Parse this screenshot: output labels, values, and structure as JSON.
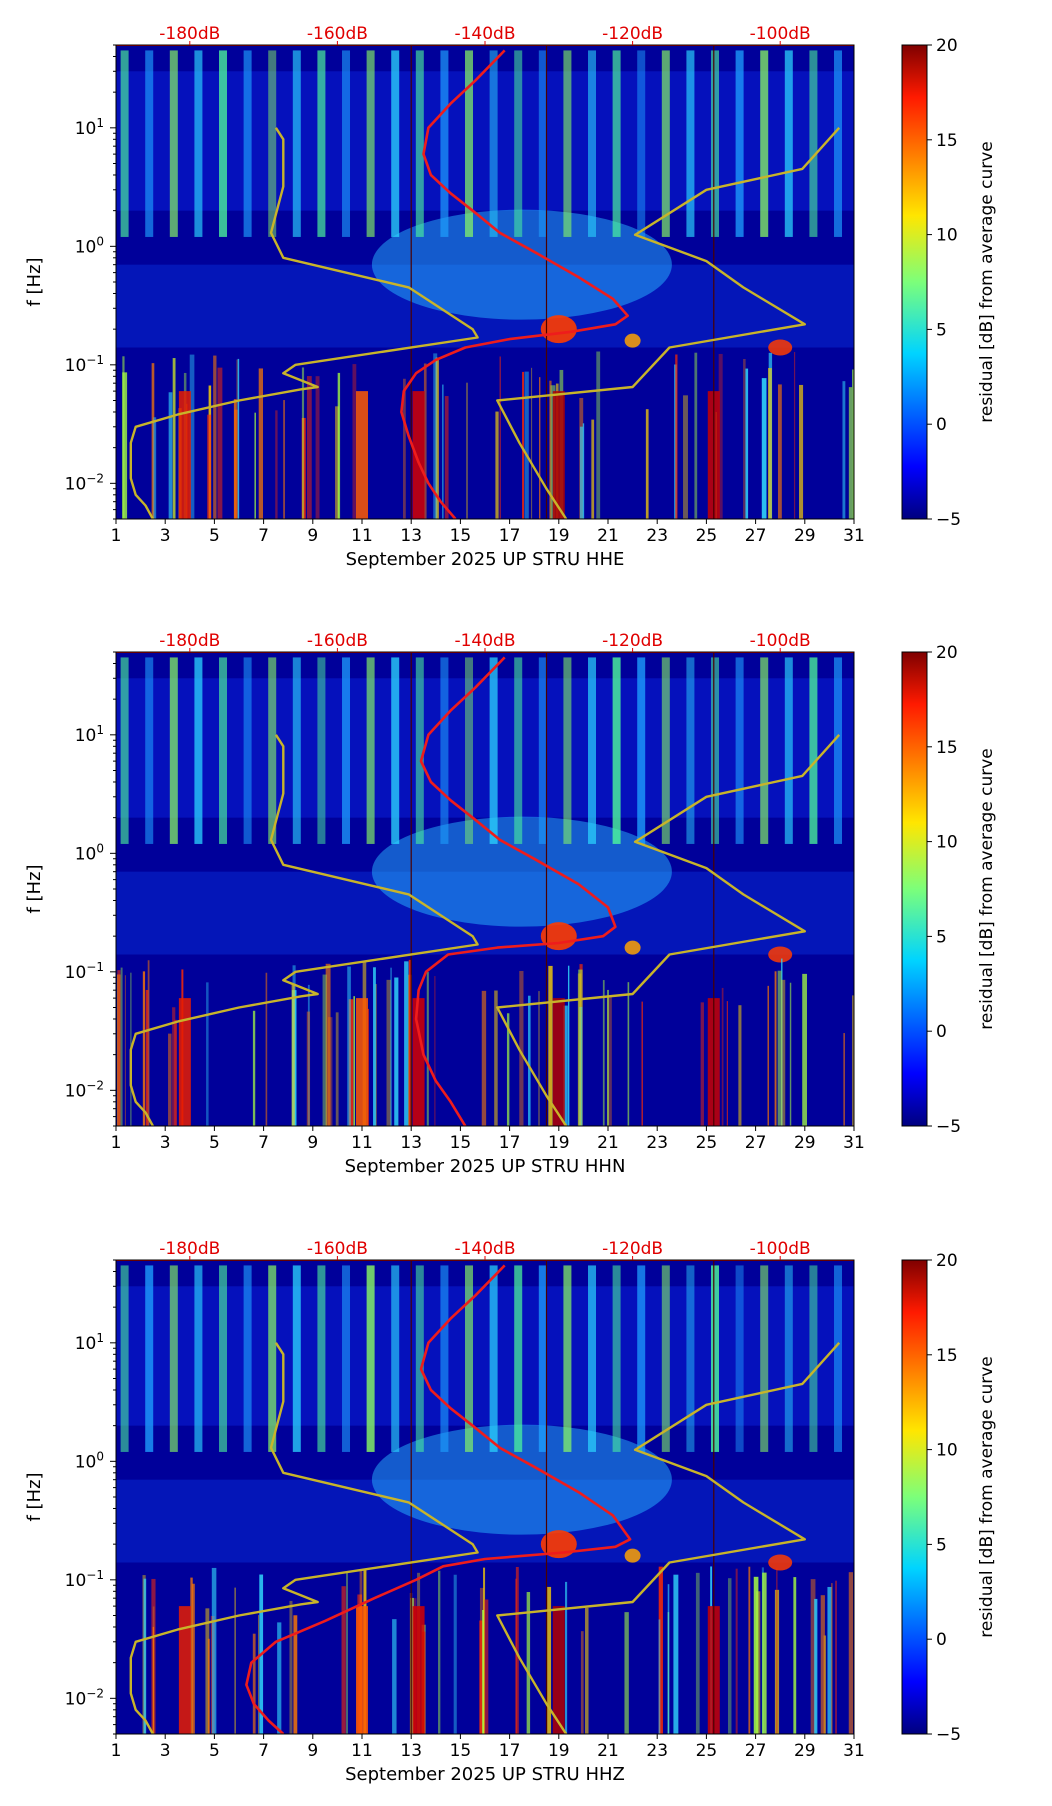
{
  "chart_data": [
    {
      "type": "heatmap",
      "title": "",
      "xlabel": "September 2025 UP STRU  HHE",
      "ylabel": "f [Hz]",
      "x_ticks": [
        "1",
        "3",
        "5",
        "7",
        "9",
        "11",
        "13",
        "15",
        "17",
        "19",
        "21",
        "23",
        "25",
        "27",
        "29",
        "31"
      ],
      "y_ticks": [
        "10^-2",
        "10^-1",
        "10^0",
        "10^1"
      ],
      "top_ticks": [
        "-180dB",
        "-160dB",
        "-140dB",
        "-120dB",
        "-100dB"
      ],
      "xlim": [
        1,
        31
      ],
      "ylim": [
        0.005,
        50
      ],
      "y_scale": "log",
      "colorbar": {
        "label": "residual [dB] from average curve",
        "ticks": [
          "20",
          "15",
          "10",
          "5",
          "0",
          "−5"
        ],
        "range": [
          -5,
          20
        ],
        "colormap": "jet"
      },
      "series": [
        {
          "color": "#ee1c1c",
          "x": [
            16.8,
            15.6,
            14.6,
            13.7,
            13.5,
            13.8,
            14.6,
            15.5,
            16.6,
            18.0,
            19.8,
            21.2,
            21.8,
            21.3,
            19.5,
            17.0,
            15.2,
            14.0,
            13.2,
            12.7,
            12.6,
            12.9,
            13.3,
            13.7,
            14.2,
            14.8
          ],
          "y": [
            45,
            25,
            16,
            10,
            6,
            4,
            2.8,
            2.0,
            1.3,
            0.9,
            0.55,
            0.36,
            0.26,
            0.22,
            0.19,
            0.165,
            0.14,
            0.11,
            0.085,
            0.06,
            0.04,
            0.025,
            0.015,
            0.01,
            0.007,
            0.005
          ]
        },
        {
          "color": "#c8b42a",
          "x": [
            2.5,
            2.2,
            1.8,
            1.6,
            1.6,
            1.8,
            3.5,
            6.0,
            8.5,
            9.2,
            7.8,
            8.3,
            15.7,
            15.5,
            12.9,
            7.8,
            7.3,
            7.8,
            7.8,
            7.5
          ],
          "y": [
            0.005,
            0.0065,
            0.008,
            0.011,
            0.022,
            0.03,
            0.038,
            0.05,
            0.062,
            0.065,
            0.085,
            0.1,
            0.17,
            0.2,
            0.45,
            0.8,
            1.3,
            3.2,
            8,
            10
          ]
        },
        {
          "color": "#c8b42a",
          "x": [
            19.3,
            18.5,
            17.4,
            16.5,
            22.0,
            23.5,
            29.0,
            26.5,
            25.0,
            22.1,
            25.0,
            28.9,
            30.4
          ],
          "y": [
            0.005,
            0.009,
            0.022,
            0.05,
            0.065,
            0.14,
            0.22,
            0.45,
            0.75,
            1.25,
            3.0,
            4.5,
            10
          ]
        }
      ]
    },
    {
      "type": "heatmap",
      "title": "",
      "xlabel": "September 2025 UP STRU  HHN",
      "ylabel": "f [Hz]",
      "x_ticks": [
        "1",
        "3",
        "5",
        "7",
        "9",
        "11",
        "13",
        "15",
        "17",
        "19",
        "21",
        "23",
        "25",
        "27",
        "29",
        "31"
      ],
      "y_ticks": [
        "10^-2",
        "10^-1",
        "10^0",
        "10^1"
      ],
      "top_ticks": [
        "-180dB",
        "-160dB",
        "-140dB",
        "-120dB",
        "-100dB"
      ],
      "xlim": [
        1,
        31
      ],
      "ylim": [
        0.005,
        50
      ],
      "y_scale": "log",
      "colorbar": {
        "label": "residual [dB] from average curve",
        "ticks": [
          "20",
          "15",
          "10",
          "5",
          "0",
          "−5"
        ],
        "range": [
          -5,
          20
        ],
        "colormap": "jet"
      },
      "series": [
        {
          "color": "#ee1c1c",
          "x": [
            16.8,
            15.6,
            14.6,
            13.7,
            13.4,
            13.8,
            14.6,
            15.5,
            16.6,
            18.0,
            19.8,
            21.0,
            21.3,
            20.8,
            19.0,
            16.5,
            14.5,
            13.6,
            13.3,
            13.2,
            13.5,
            14.0,
            14.6,
            15.2
          ],
          "y": [
            45,
            25,
            16,
            10,
            6,
            4,
            2.8,
            2.0,
            1.3,
            0.9,
            0.55,
            0.35,
            0.24,
            0.2,
            0.175,
            0.16,
            0.14,
            0.1,
            0.07,
            0.04,
            0.02,
            0.012,
            0.008,
            0.005
          ]
        },
        {
          "color": "#c8b42a",
          "x": [
            2.5,
            2.2,
            1.8,
            1.6,
            1.6,
            1.8,
            3.5,
            6.0,
            8.5,
            9.2,
            7.8,
            8.3,
            15.7,
            15.5,
            12.9,
            7.8,
            7.3,
            7.8,
            7.8,
            7.5
          ],
          "y": [
            0.005,
            0.0065,
            0.008,
            0.011,
            0.022,
            0.03,
            0.038,
            0.05,
            0.062,
            0.065,
            0.085,
            0.1,
            0.17,
            0.2,
            0.45,
            0.8,
            1.3,
            3.2,
            8,
            10
          ]
        },
        {
          "color": "#c8b42a",
          "x": [
            19.3,
            18.5,
            17.4,
            16.5,
            22.0,
            23.5,
            29.0,
            26.5,
            25.0,
            22.1,
            25.0,
            28.9,
            30.4
          ],
          "y": [
            0.005,
            0.009,
            0.022,
            0.05,
            0.065,
            0.14,
            0.22,
            0.45,
            0.75,
            1.25,
            3.0,
            4.5,
            10
          ]
        }
      ]
    },
    {
      "type": "heatmap",
      "title": "",
      "xlabel": "September 2025 UP STRU  HHZ",
      "ylabel": "f [Hz]",
      "x_ticks": [
        "1",
        "3",
        "5",
        "7",
        "9",
        "11",
        "13",
        "15",
        "17",
        "19",
        "21",
        "23",
        "25",
        "27",
        "29",
        "31"
      ],
      "y_ticks": [
        "10^-2",
        "10^-1",
        "10^0",
        "10^1"
      ],
      "top_ticks": [
        "-180dB",
        "-160dB",
        "-140dB",
        "-120dB",
        "-100dB"
      ],
      "xlim": [
        1,
        31
      ],
      "ylim": [
        0.005,
        50
      ],
      "y_scale": "log",
      "colorbar": {
        "label": "residual [dB] from average curve",
        "ticks": [
          "20",
          "15",
          "10",
          "5",
          "0",
          "−5"
        ],
        "range": [
          -5,
          20
        ],
        "colormap": "jet"
      },
      "series": [
        {
          "color": "#ee1c1c",
          "x": [
            16.8,
            15.6,
            14.6,
            13.7,
            13.4,
            13.8,
            14.6,
            15.5,
            16.6,
            18.0,
            19.8,
            21.2,
            21.9,
            21.3,
            19.2,
            16.0,
            14.3,
            13.2,
            11.5,
            9.5,
            7.5,
            6.5,
            6.3,
            6.6,
            7.2,
            7.8
          ],
          "y": [
            45,
            25,
            16,
            10,
            6,
            4,
            2.8,
            2.0,
            1.3,
            0.9,
            0.55,
            0.35,
            0.22,
            0.19,
            0.17,
            0.15,
            0.13,
            0.1,
            0.07,
            0.045,
            0.03,
            0.02,
            0.013,
            0.009,
            0.0065,
            0.005
          ]
        },
        {
          "color": "#c8b42a",
          "x": [
            2.5,
            2.2,
            1.8,
            1.6,
            1.6,
            1.8,
            3.5,
            6.0,
            8.5,
            9.2,
            7.8,
            8.3,
            15.7,
            15.5,
            12.9,
            7.8,
            7.3,
            7.8,
            7.8,
            7.5
          ],
          "y": [
            0.005,
            0.0065,
            0.008,
            0.011,
            0.022,
            0.03,
            0.038,
            0.05,
            0.062,
            0.065,
            0.085,
            0.1,
            0.17,
            0.2,
            0.45,
            0.8,
            1.3,
            3.2,
            8,
            10
          ]
        },
        {
          "color": "#c8b42a",
          "x": [
            19.3,
            18.5,
            17.4,
            16.5,
            22.0,
            23.5,
            29.0,
            26.5,
            25.0,
            22.1,
            25.0,
            28.9,
            30.4
          ],
          "y": [
            0.005,
            0.009,
            0.022,
            0.05,
            0.065,
            0.14,
            0.22,
            0.45,
            0.75,
            1.25,
            3.0,
            4.5,
            10
          ]
        }
      ]
    }
  ]
}
